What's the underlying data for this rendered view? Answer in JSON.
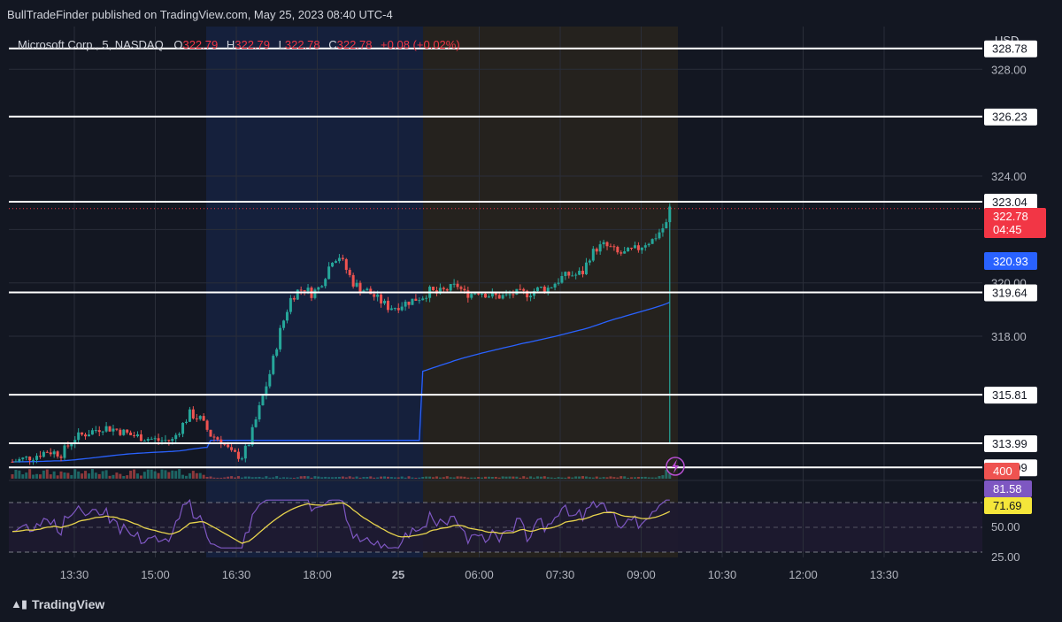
{
  "publisher": "BullTradeFinder published on TradingView.com, May 25, 2023 08:40 UTC-4",
  "legend": {
    "symbol": "Microsoft Corp., 5, NASDAQ",
    "o_label": "O",
    "o_value": "322.79",
    "h_label": "H",
    "h_value": "322.79",
    "l_label": "L",
    "l_value": "322.78",
    "c_label": "C",
    "c_value": "322.78",
    "change": "+0.08 (+0.02%)"
  },
  "currency": "USD",
  "brand": "TradingView",
  "colors": {
    "background": "#131722",
    "up": "#26a69a",
    "down": "#ef5350",
    "vwap": "#2962ff",
    "rsi": "#7e57c2",
    "rsi_ma": "#e8d44d",
    "level_line": "#ffffff",
    "last_price_tag": "#f23645",
    "session_pre_blue": "#1a2545",
    "session_pre_orange": "#2a2620"
  },
  "chart_data": {
    "type": "candlestick",
    "price_axis": {
      "ylim": [
        312.6,
        329.6
      ],
      "ticks": [
        "328.00",
        "324.00",
        "322.00",
        "320.00",
        "318.00"
      ]
    },
    "time_axis": {
      "ticks": [
        "13:30",
        "15:00",
        "16:30",
        "18:00",
        "25",
        "06:00",
        "07:30",
        "09:00",
        "10:30",
        "12:00",
        "13:30"
      ]
    },
    "levels": [
      "328.78",
      "326.23",
      "323.04",
      "319.64",
      "315.81",
      "313.99",
      "313.09"
    ],
    "last_price": {
      "value": "322.78",
      "countdown": "04:45"
    },
    "vwap_tag": "320.93",
    "volume_tag": "400",
    "rsi": {
      "ticks": [
        "50.00",
        "25.00"
      ],
      "value": "81.58",
      "ma_value": "71.69"
    },
    "price_path": [
      [
        0,
        313.3
      ],
      [
        6,
        313.5
      ],
      [
        10,
        313.7
      ],
      [
        14,
        313.6
      ],
      [
        18,
        314.2
      ],
      [
        22,
        314.4
      ],
      [
        26,
        314.6
      ],
      [
        30,
        314.5
      ],
      [
        34,
        314.3
      ],
      [
        38,
        314.2
      ],
      [
        42,
        314.1
      ],
      [
        46,
        314.1
      ],
      [
        48,
        314.5
      ],
      [
        51,
        315.1
      ],
      [
        54,
        314.9
      ],
      [
        57,
        314.3
      ],
      [
        60,
        314.1
      ],
      [
        63,
        313.6
      ],
      [
        66,
        313.5
      ],
      [
        68,
        314.0
      ],
      [
        71,
        315.3
      ],
      [
        74,
        316.6
      ],
      [
        77,
        318.2
      ],
      [
        80,
        319.4
      ],
      [
        82,
        319.7
      ],
      [
        84,
        319.8
      ],
      [
        86,
        319.6
      ],
      [
        88,
        319.8
      ],
      [
        90,
        320.3
      ],
      [
        92,
        320.9
      ],
      [
        94,
        321.0
      ],
      [
        96,
        320.5
      ],
      [
        98,
        320.0
      ],
      [
        100,
        319.8
      ],
      [
        102,
        319.7
      ],
      [
        104,
        319.5
      ],
      [
        106,
        319.3
      ],
      [
        108,
        319.1
      ],
      [
        110,
        319.1
      ],
      [
        112,
        319.2
      ],
      [
        114,
        319.3
      ],
      [
        116,
        319.4
      ],
      [
        118,
        319.5
      ],
      [
        120,
        319.7
      ],
      [
        122,
        319.6
      ],
      [
        124,
        319.7
      ],
      [
        126,
        319.8
      ],
      [
        128,
        319.9
      ],
      [
        130,
        319.6
      ],
      [
        132,
        319.6
      ],
      [
        134,
        319.7
      ],
      [
        136,
        319.6
      ],
      [
        138,
        319.5
      ],
      [
        140,
        319.5
      ],
      [
        142,
        319.5
      ],
      [
        144,
        319.6
      ],
      [
        146,
        319.6
      ],
      [
        148,
        319.6
      ],
      [
        150,
        319.7
      ],
      [
        152,
        319.8
      ],
      [
        154,
        319.8
      ],
      [
        156,
        320.0
      ],
      [
        158,
        320.2
      ],
      [
        160,
        320.3
      ],
      [
        162,
        320.3
      ],
      [
        164,
        320.4
      ],
      [
        166,
        321.0
      ],
      [
        168,
        321.3
      ],
      [
        170,
        321.4
      ],
      [
        172,
        321.3
      ],
      [
        174,
        321.1
      ],
      [
        176,
        321.1
      ],
      [
        178,
        321.2
      ],
      [
        180,
        321.3
      ],
      [
        182,
        321.5
      ],
      [
        184,
        321.6
      ],
      [
        186,
        321.9
      ],
      [
        188,
        322.2
      ],
      [
        189,
        322.79
      ]
    ]
  }
}
